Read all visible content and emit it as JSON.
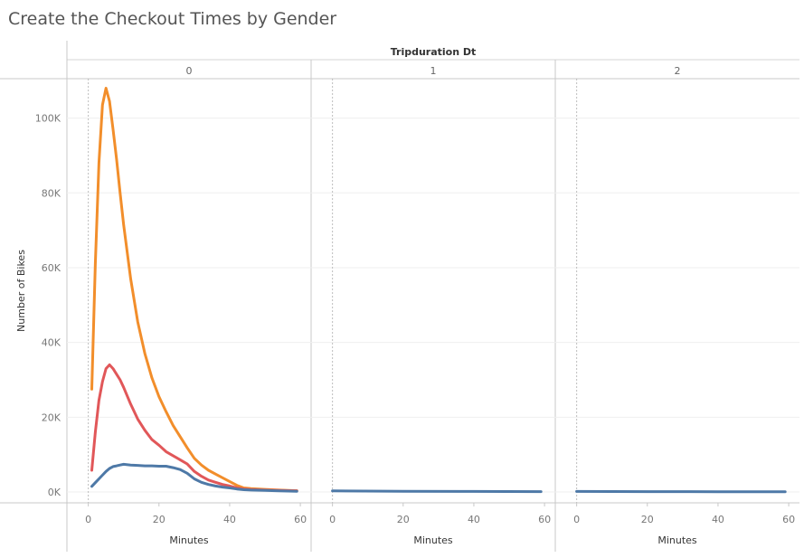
{
  "chart_data": {
    "type": "line",
    "title": "Create the Checkout Times by Gender",
    "column_header": "Tripduration Dt",
    "xlabel": "Minutes",
    "ylabel": "Number of Bikes",
    "yticks": [
      0,
      20000,
      40000,
      60000,
      80000,
      100000
    ],
    "ytick_labels": [
      "0K",
      "20K",
      "40K",
      "60K",
      "80K",
      "100K"
    ],
    "ylim": [
      0,
      112000
    ],
    "xlim": [
      -4,
      61
    ],
    "xticks": [
      0,
      20,
      40,
      60
    ],
    "xtick_labels": [
      "0",
      "20",
      "40",
      "60"
    ],
    "grid": true,
    "panels": [
      {
        "label": "0",
        "series": [
          {
            "color": "#f28e2b",
            "x": [
              1,
              2,
              3,
              4,
              5,
              6,
              7,
              8,
              9,
              10,
              12,
              14,
              16,
              18,
              20,
              22,
              24,
              26,
              28,
              30,
              32,
              34,
              36,
              38,
              40,
              42,
              44,
              46,
              50,
              54,
              59
            ],
            "values": [
              27500,
              61000,
              88000,
              103500,
              108000,
              104500,
              97000,
              89000,
              80000,
              71500,
              57000,
              45500,
              37000,
              30500,
              25500,
              21500,
              17800,
              14800,
              11800,
              9000,
              7200,
              5800,
              4800,
              3800,
              2800,
              1800,
              1100,
              900,
              700,
              500,
              350
            ]
          },
          {
            "color": "#e15759",
            "x": [
              1,
              2,
              3,
              4,
              5,
              6,
              7,
              8,
              9,
              10,
              12,
              14,
              16,
              18,
              20,
              22,
              24,
              26,
              28,
              30,
              32,
              34,
              36,
              38,
              40,
              42,
              44,
              46,
              50,
              54,
              59
            ],
            "values": [
              5800,
              16000,
              24500,
              29500,
              33000,
              34000,
              33000,
              31500,
              30000,
              28000,
              23500,
              19500,
              16500,
              14000,
              12500,
              10800,
              9700,
              8600,
              7500,
              5500,
              4200,
              3200,
              2600,
              2000,
              1600,
              1100,
              800,
              650,
              500,
              400,
              300
            ]
          },
          {
            "color": "#4e79a7",
            "x": [
              1,
              2,
              3,
              4,
              5,
              6,
              7,
              8,
              9,
              10,
              12,
              14,
              16,
              18,
              20,
              22,
              24,
              26,
              28,
              30,
              32,
              34,
              36,
              38,
              40,
              42,
              44,
              46,
              50,
              54,
              59
            ],
            "values": [
              1500,
              2500,
              3500,
              4500,
              5500,
              6300,
              6800,
              7000,
              7200,
              7400,
              7200,
              7100,
              7000,
              7000,
              6900,
              6900,
              6500,
              6000,
              5000,
              3500,
              2600,
              2000,
              1600,
              1300,
              1100,
              800,
              600,
              500,
              400,
              300,
              200
            ]
          }
        ]
      },
      {
        "label": "1",
        "series": [
          {
            "color": "#4e79a7",
            "x": [
              0,
              20,
              40,
              59
            ],
            "values": [
              300,
              200,
              150,
              100
            ]
          }
        ]
      },
      {
        "label": "2",
        "series": [
          {
            "color": "#4e79a7",
            "x": [
              0,
              20,
              40,
              59
            ],
            "values": [
              150,
              100,
              80,
              60
            ]
          }
        ]
      }
    ]
  }
}
